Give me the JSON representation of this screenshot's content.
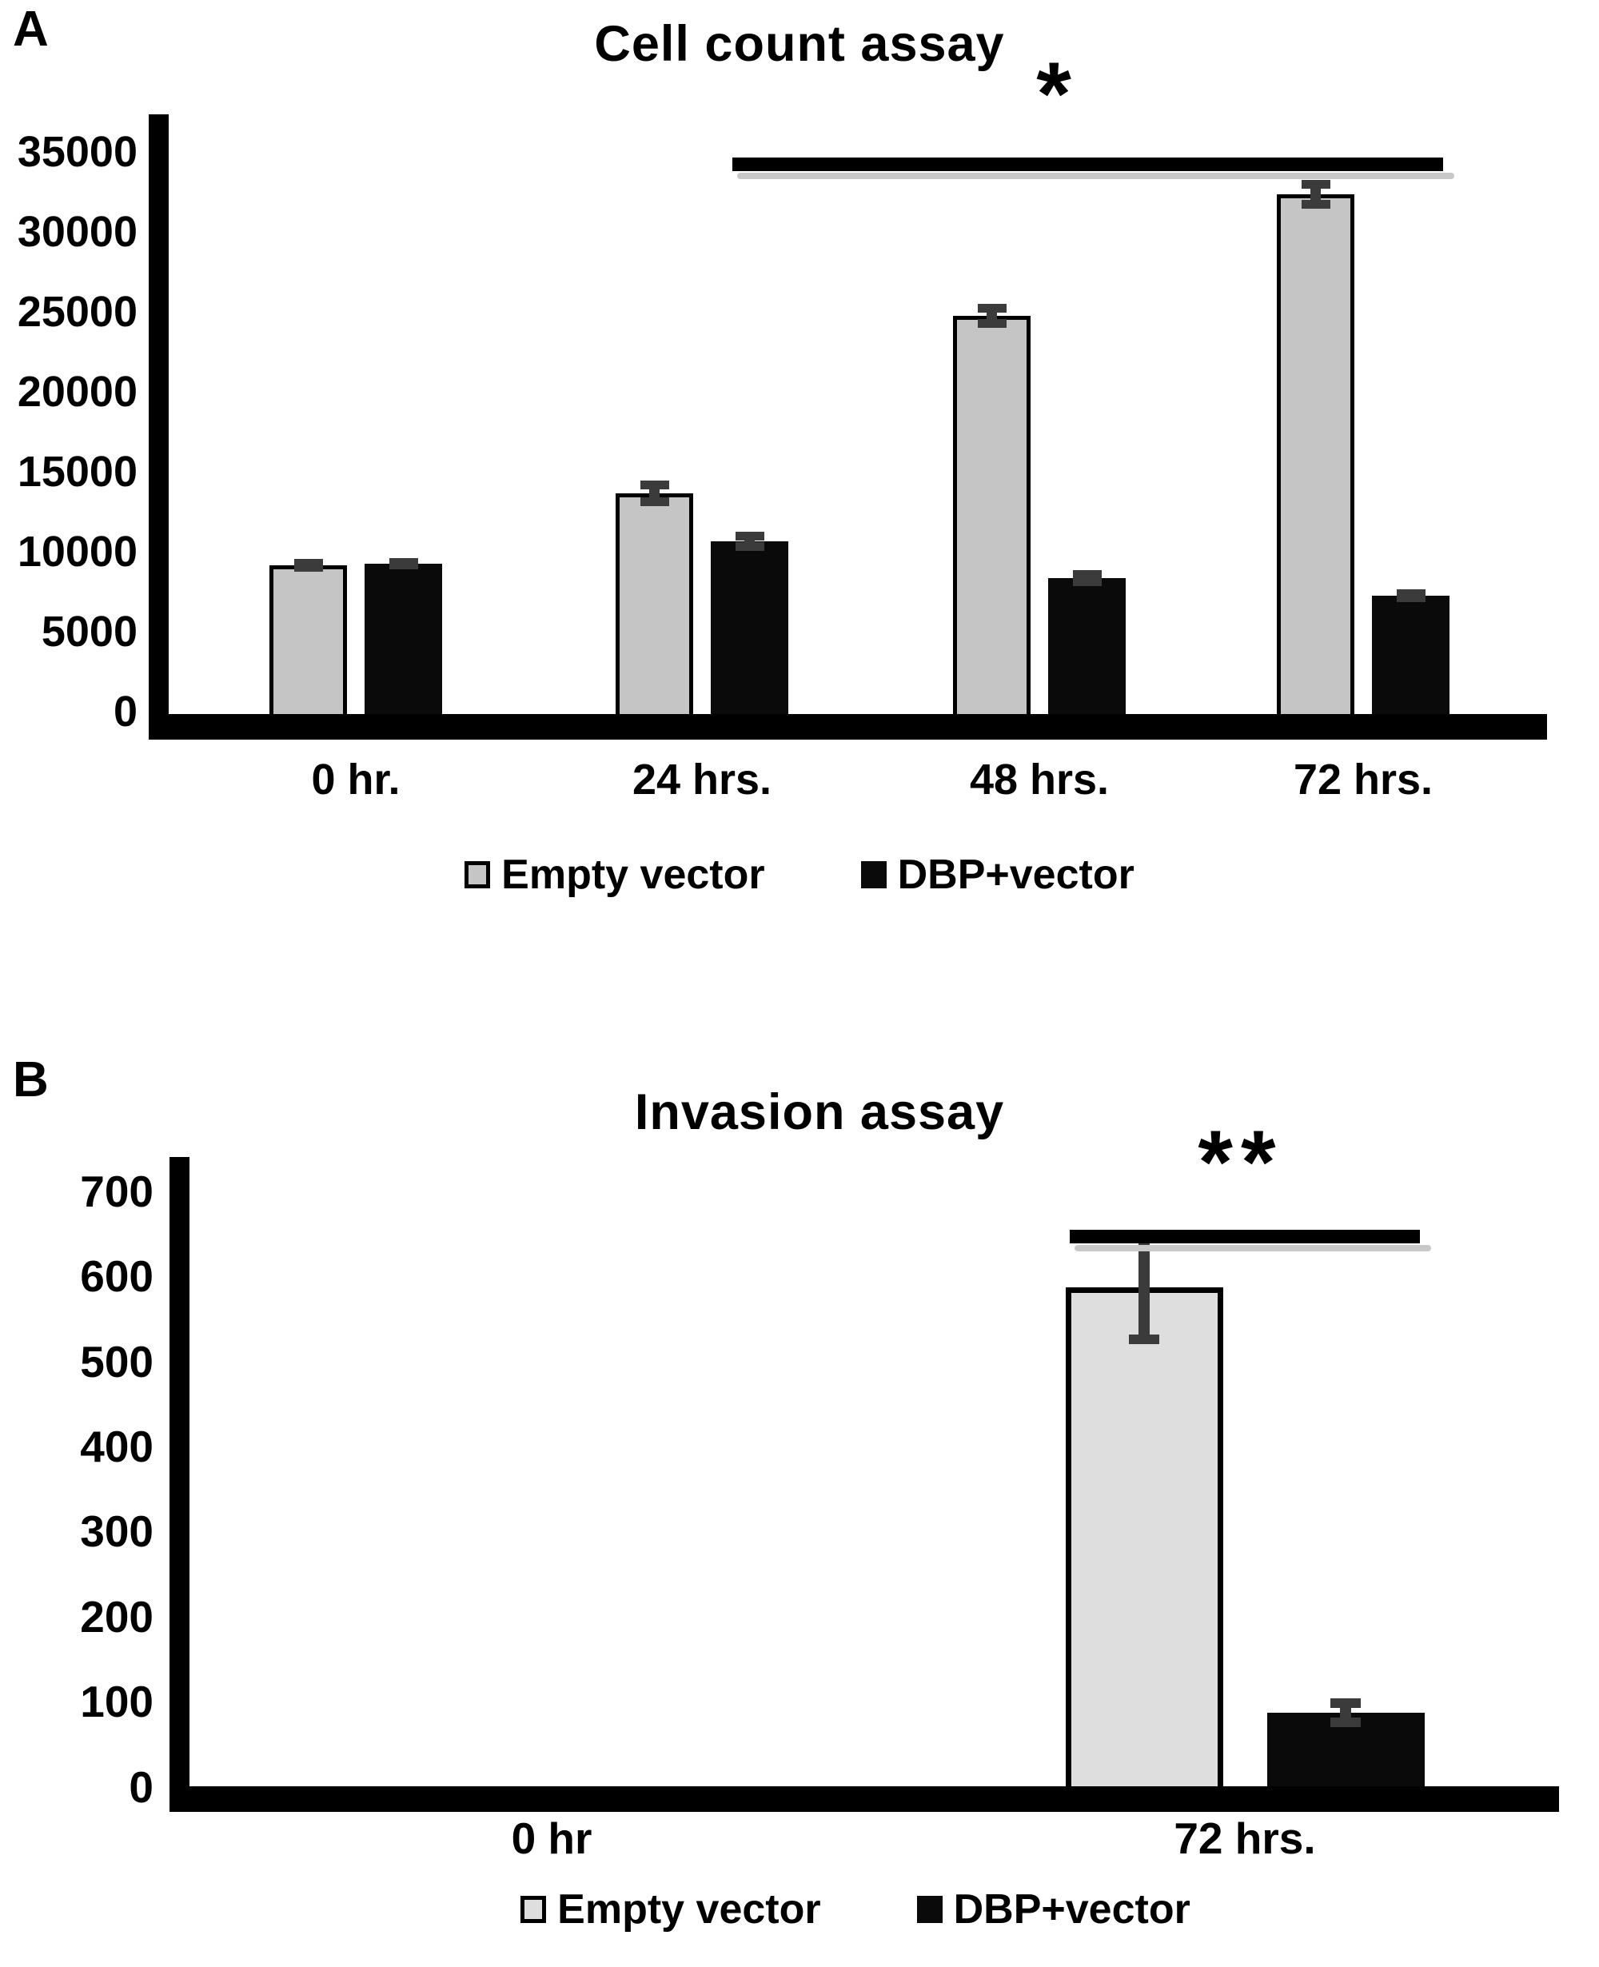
{
  "panels": [
    {
      "letter": "A"
    },
    {
      "letter": "B"
    }
  ],
  "colors": {
    "empty_vector_fill_a": "#c5c5c5",
    "empty_vector_fill_b": "#dedede",
    "dbp_vector_fill": "#0a0a0a",
    "bar_outline": "#000000",
    "error_bar": "#3b3b3b",
    "axis": "#000000",
    "sig_line": "#000000",
    "sig_line_shadow": "#c8c8c8",
    "text": "#000000",
    "background": "#ffffff"
  },
  "chart_data": [
    {
      "type": "bar",
      "title": "Cell count assay",
      "categories": [
        "0 hr.",
        "24 hrs.",
        "48 hrs.",
        "72 hrs."
      ],
      "series": [
        {
          "name": "Empty vector",
          "values": [
            9300,
            13800,
            24900,
            32500
          ],
          "errors": [
            300,
            700,
            650,
            800
          ],
          "fill": "#c5c5c5",
          "border": "#000000"
        },
        {
          "name": "DBP+vector",
          "values": [
            9400,
            10800,
            8500,
            7400
          ],
          "errors": [
            250,
            500,
            400,
            300
          ],
          "fill": "#0a0a0a",
          "border": null
        }
      ],
      "xlabel": "",
      "ylabel": "",
      "ylim": [
        0,
        35000
      ],
      "ytick_step": 5000,
      "yticks": [
        0,
        5000,
        10000,
        15000,
        20000,
        25000,
        30000,
        35000
      ],
      "grid": false,
      "legend_position": "bottom",
      "annotation": {
        "text": "*",
        "span_categories": [
          "24 hrs.",
          "72 hrs."
        ],
        "y": 34400
      }
    },
    {
      "type": "bar",
      "title": "Invasion assay",
      "categories": [
        "0 hr",
        "72 hrs."
      ],
      "series": [
        {
          "name": "Empty vector",
          "values": [
            0,
            590
          ],
          "errors": [
            0,
            65
          ],
          "fill": "#dedede",
          "border": "#000000"
        },
        {
          "name": "DBP+vector",
          "values": [
            0,
            90
          ],
          "errors": [
            0,
            15
          ],
          "fill": "#0a0a0a",
          "border": null
        }
      ],
      "xlabel": "",
      "ylabel": "",
      "ylim": [
        0,
        700
      ],
      "ytick_step": 100,
      "yticks": [
        0,
        100,
        200,
        300,
        400,
        500,
        600,
        700
      ],
      "grid": false,
      "legend_position": "bottom",
      "annotation": {
        "text": "**",
        "span_categories": [
          "72 hrs."
        ],
        "y": 695
      }
    }
  ]
}
